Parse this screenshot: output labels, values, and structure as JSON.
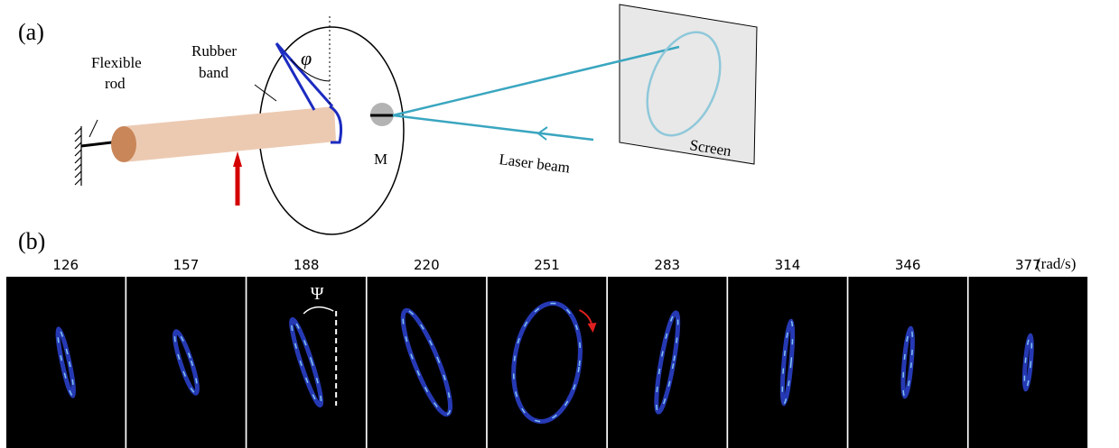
{
  "panel_a": {
    "label": "(a)",
    "flexible_rod": [
      "Flexible",
      "rod"
    ],
    "rubber_band": [
      "Rubber",
      "band"
    ],
    "phi": "φ",
    "mirror": "M",
    "laser_beam": "Laser beam",
    "screen": "Screen"
  },
  "panel_b": {
    "label": "(b)",
    "frequencies": [
      126,
      157,
      188,
      220,
      251,
      283,
      314,
      346,
      377
    ],
    "unit": "(rad/s)",
    "psi": "Ψ"
  }
}
